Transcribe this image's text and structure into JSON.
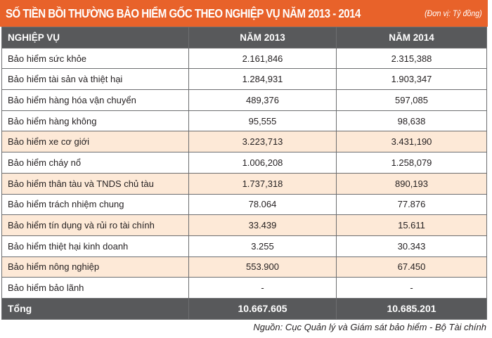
{
  "title": "SỐ TIỀN BỒI THƯỜNG BẢO HIỂM GỐC THEO NGHIỆP VỤ NĂM 2013 - 2014",
  "unit": "(Đơn vị: Tỷ đồng)",
  "colors": {
    "title_bg": "#e8622a",
    "header_bg": "#58595b",
    "highlight_row": "#fde9d7"
  },
  "headers": [
    "NGHIỆP VỤ",
    "NĂM 2013",
    "NĂM 2014"
  ],
  "rows": [
    {
      "name": "Bảo hiểm sức khỏe",
      "y2013": "2.161,846",
      "y2014": "2.315,388",
      "highlight": false
    },
    {
      "name": "Bảo hiểm tài sản và thiệt hại",
      "y2013": "1.284,931",
      "y2014": "1.903,347",
      "highlight": false
    },
    {
      "name": "Bảo hiểm hàng hóa vận chuyển",
      "y2013": "489,376",
      "y2014": "597,085",
      "highlight": false
    },
    {
      "name": "Bảo hiểm hàng không",
      "y2013": "95,555",
      "y2014": "98,638",
      "highlight": false
    },
    {
      "name": "Bảo hiểm xe cơ giới",
      "y2013": "3.223,713",
      "y2014": "3.431,190",
      "highlight": true
    },
    {
      "name": "Bảo hiểm cháy nổ",
      "y2013": "1.006,208",
      "y2014": "1.258,079",
      "highlight": false
    },
    {
      "name": "Bảo hiểm thân tàu và TNDS chủ tàu",
      "y2013": "1.737,318",
      "y2014": "890,193",
      "highlight": true
    },
    {
      "name": "Bảo hiểm trách nhiệm chung",
      "y2013": "78.064",
      "y2014": "77.876",
      "highlight": false
    },
    {
      "name": "Bảo hiểm tín dụng và rủi ro tài chính",
      "y2013": "33.439",
      "y2014": "15.611",
      "highlight": true
    },
    {
      "name": "Bảo hiểm thiệt hại kinh doanh",
      "y2013": "3.255",
      "y2014": "30.343",
      "highlight": false
    },
    {
      "name": "Bảo hiểm nông nghiệp",
      "y2013": "553.900",
      "y2014": "67.450",
      "highlight": true
    },
    {
      "name": "Bảo hiểm bảo lãnh",
      "y2013": "-",
      "y2014": "-",
      "highlight": false
    }
  ],
  "total": {
    "name": "Tổng",
    "y2013": "10.667.605",
    "y2014": "10.685.201"
  },
  "source": "Nguồn: Cục Quản lý và Giám sát bảo hiểm - Bộ Tài chính"
}
